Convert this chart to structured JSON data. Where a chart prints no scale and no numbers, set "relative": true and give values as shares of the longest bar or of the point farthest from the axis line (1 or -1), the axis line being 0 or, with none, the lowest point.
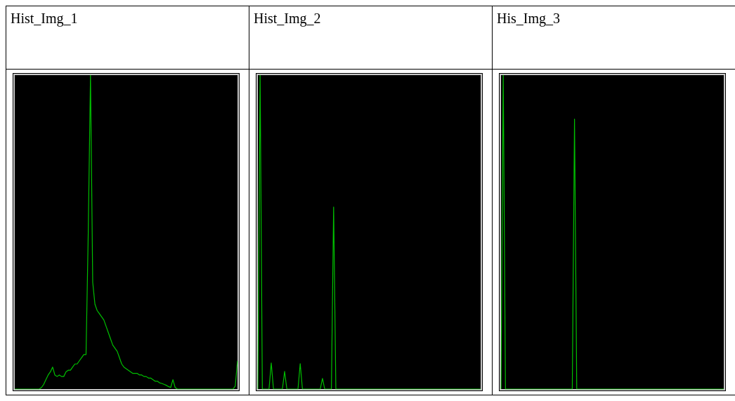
{
  "chart_data": [
    {
      "type": "line",
      "title": "Hist_Img_1",
      "relative": true,
      "color": "#00c000",
      "categories": [
        null,
        null,
        null,
        null,
        null,
        null,
        null,
        null,
        null,
        null,
        null,
        null,
        null,
        null,
        null,
        null,
        null,
        null,
        null,
        null,
        null,
        null,
        null,
        null,
        null,
        null,
        null,
        null,
        null,
        null,
        null,
        null,
        null,
        null,
        null,
        null,
        null,
        null,
        null,
        null,
        null,
        null,
        null,
        null,
        null,
        null,
        null,
        null,
        null,
        null,
        null,
        null,
        null,
        null,
        null,
        null,
        null,
        null,
        null,
        null,
        null,
        null,
        null,
        null,
        null,
        null,
        null,
        null,
        null,
        null,
        null,
        null,
        null,
        null,
        null,
        null,
        null,
        null,
        null,
        null,
        null,
        null,
        null,
        null,
        null,
        null,
        null,
        null,
        null,
        null,
        null,
        null,
        null,
        null,
        null,
        null,
        null,
        null,
        null,
        null,
        null
      ],
      "values": [
        0,
        0,
        0,
        0,
        0,
        0,
        0,
        0,
        0,
        0,
        0,
        0,
        0.005,
        0.015,
        0.03,
        0.045,
        0.055,
        0.07,
        0.045,
        0.04,
        0.045,
        0.04,
        0.04,
        0.055,
        0.06,
        0.06,
        0.07,
        0.08,
        0.08,
        0.09,
        0.1,
        0.11,
        0.11,
        0.5,
        1,
        0.34,
        0.27,
        0.25,
        0.24,
        0.23,
        0.22,
        0.2,
        0.18,
        0.16,
        0.14,
        0.13,
        0.12,
        0.1,
        0.08,
        0.07,
        0.065,
        0.06,
        0.055,
        0.05,
        0.05,
        0.05,
        0.045,
        0.045,
        0.04,
        0.04,
        0.035,
        0.035,
        0.03,
        0.025,
        0.025,
        0.02,
        0.018,
        0.015,
        0.012,
        0.008,
        0.005,
        0.03,
        0.005,
        0,
        0,
        0,
        0,
        0,
        0,
        0,
        0,
        0,
        0,
        0,
        0,
        0,
        0,
        0,
        0,
        0,
        0,
        0,
        0,
        0,
        0,
        0,
        0,
        0,
        0,
        0.01,
        0.09
      ]
    },
    {
      "type": "line",
      "title": "Hist_Img_2",
      "relative": true,
      "color": "#00c000",
      "categories": [
        null,
        null,
        null,
        null,
        null,
        null,
        null,
        null,
        null,
        null,
        null,
        null,
        null,
        null,
        null,
        null,
        null,
        null,
        null,
        null,
        null,
        null,
        null,
        null,
        null,
        null,
        null,
        null,
        null,
        null,
        null,
        null,
        null,
        null,
        null,
        null,
        null,
        null,
        null,
        null,
        null,
        null,
        null,
        null,
        null,
        null,
        null,
        null,
        null,
        null,
        null,
        null,
        null,
        null,
        null,
        null,
        null,
        null,
        null,
        null,
        null,
        null,
        null,
        null,
        null,
        null,
        null,
        null,
        null,
        null,
        null,
        null,
        null,
        null,
        null,
        null,
        null,
        null,
        null,
        null,
        null,
        null,
        null,
        null,
        null,
        null,
        null,
        null,
        null,
        null,
        null,
        null,
        null,
        null,
        null,
        null,
        null,
        null,
        null,
        null,
        null
      ],
      "values": [
        0,
        1,
        0,
        0,
        0,
        0,
        0.083,
        0,
        0,
        0,
        0,
        0,
        0.056,
        0,
        0,
        0,
        0,
        0,
        0,
        0.081,
        0,
        0,
        0,
        0,
        0,
        0,
        0,
        0,
        0,
        0.034,
        0,
        0,
        0,
        0,
        0.58,
        0,
        0,
        0,
        0,
        0,
        0,
        0,
        0,
        0,
        0,
        0,
        0,
        0,
        0,
        0,
        0,
        0,
        0,
        0,
        0,
        0,
        0,
        0,
        0,
        0,
        0,
        0,
        0,
        0,
        0,
        0,
        0,
        0,
        0,
        0,
        0,
        0,
        0,
        0,
        0,
        0,
        0,
        0,
        0,
        0,
        0,
        0,
        0,
        0,
        0,
        0,
        0,
        0,
        0,
        0,
        0,
        0,
        0,
        0,
        0,
        0,
        0,
        0,
        0,
        0,
        0
      ]
    },
    {
      "type": "line",
      "title": "His_Img_3",
      "relative": true,
      "color": "#00c000",
      "categories": [
        null,
        null,
        null,
        null,
        null,
        null,
        null,
        null,
        null,
        null,
        null,
        null,
        null,
        null,
        null,
        null,
        null,
        null,
        null,
        null,
        null,
        null,
        null,
        null,
        null,
        null,
        null,
        null,
        null,
        null,
        null,
        null,
        null,
        null,
        null,
        null,
        null,
        null,
        null,
        null,
        null,
        null,
        null,
        null,
        null,
        null,
        null,
        null,
        null,
        null,
        null,
        null,
        null,
        null,
        null,
        null,
        null,
        null,
        null,
        null,
        null,
        null,
        null,
        null,
        null,
        null,
        null,
        null,
        null,
        null,
        null,
        null,
        null,
        null,
        null,
        null,
        null,
        null,
        null,
        null,
        null,
        null,
        null,
        null,
        null,
        null,
        null,
        null,
        null,
        null,
        null,
        null,
        null,
        null,
        null,
        null,
        null,
        null,
        null,
        null,
        null
      ],
      "values": [
        0,
        1,
        0,
        0,
        0,
        0,
        0,
        0,
        0,
        0,
        0,
        0,
        0,
        0,
        0,
        0,
        0,
        0,
        0,
        0,
        0,
        0,
        0,
        0,
        0,
        0,
        0,
        0,
        0,
        0,
        0,
        0,
        0,
        0.86,
        0,
        0,
        0,
        0,
        0,
        0,
        0,
        0,
        0,
        0,
        0,
        0,
        0,
        0,
        0,
        0,
        0,
        0,
        0,
        0,
        0,
        0,
        0,
        0,
        0,
        0,
        0,
        0,
        0,
        0,
        0,
        0,
        0,
        0,
        0,
        0,
        0,
        0,
        0,
        0,
        0,
        0,
        0,
        0,
        0,
        0,
        0,
        0,
        0,
        0,
        0,
        0,
        0,
        0,
        0,
        0,
        0,
        0,
        0,
        0,
        0,
        0,
        0,
        0,
        0,
        0,
        0
      ]
    }
  ]
}
